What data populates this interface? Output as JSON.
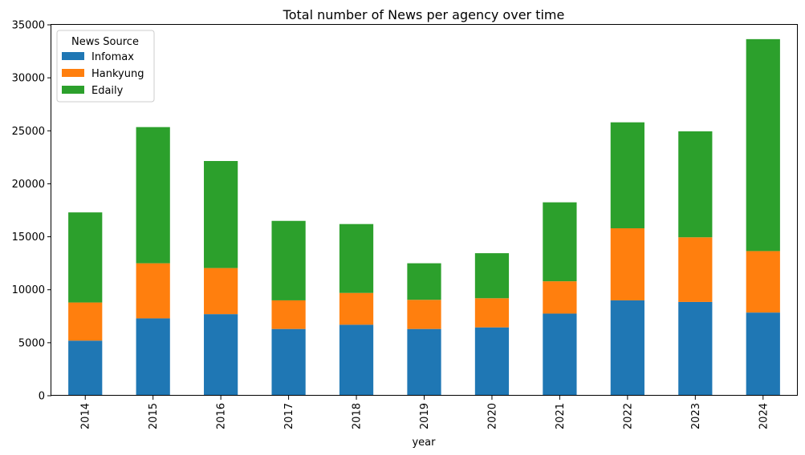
{
  "chart_data": {
    "type": "bar",
    "stacked": true,
    "title": "Total number of News per agency over time",
    "xlabel": "year",
    "ylabel": "",
    "categories": [
      "2014",
      "2015",
      "2016",
      "2017",
      "2018",
      "2019",
      "2020",
      "2021",
      "2022",
      "2023",
      "2024"
    ],
    "series": [
      {
        "name": "Infomax",
        "color": "#1f77b4",
        "values": [
          5200,
          7300,
          7700,
          6300,
          6700,
          6300,
          6450,
          7750,
          9000,
          8850,
          7850
        ]
      },
      {
        "name": "Hankyung",
        "color": "#ff7f0e",
        "values": [
          3600,
          5200,
          4350,
          2700,
          3000,
          2750,
          2750,
          3050,
          6800,
          6100,
          5800
        ]
      },
      {
        "name": "Edaily",
        "color": "#2ca02c",
        "values": [
          8500,
          12850,
          10100,
          7500,
          6500,
          3450,
          4250,
          7450,
          10000,
          10000,
          20000
        ]
      }
    ],
    "ylim": [
      0,
      35000
    ],
    "yticks": [
      "0",
      "5000",
      "10000",
      "15000",
      "20000",
      "25000",
      "30000",
      "35000"
    ],
    "legend": {
      "title": "News Source",
      "placement": "top-left"
    },
    "grid": false
  }
}
